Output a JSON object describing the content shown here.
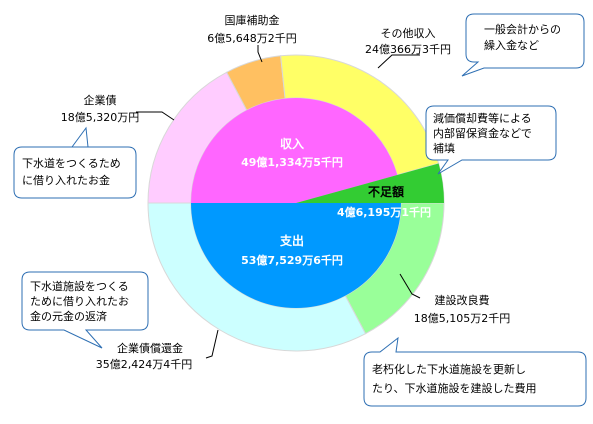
{
  "chart_data": {
    "type": "pie",
    "title": "",
    "rings": [
      {
        "ring": "outer-revenue",
        "slices": [
          {
            "name": "国庫補助金",
            "value_label": "6億5,648万2千円",
            "value": 656482,
            "color": "#ffc061"
          },
          {
            "name": "その他収入",
            "value_label": "24億366万3千円",
            "value": 2403663,
            "color": "#ffff66"
          },
          {
            "name": "不足額",
            "value_label": "4億6,195万1千円",
            "value": 461951,
            "color": "#33cc33"
          },
          {
            "name": "企業債",
            "value_label": "18億5,320万円",
            "value": 1853200,
            "color": "#ffccff"
          }
        ]
      },
      {
        "ring": "outer-expenditure",
        "slices": [
          {
            "name": "建設改良費",
            "value_label": "18億5,105万2千円",
            "value": 1851052,
            "color": "#99ff99"
          },
          {
            "name": "企業債償還金",
            "value_label": "35億2,424万4千円",
            "value": 3524244,
            "color": "#ccffff"
          }
        ]
      },
      {
        "ring": "inner",
        "halves": [
          {
            "name": "収入",
            "value_label": "49億1,334万5千円",
            "value": 4913345,
            "color": "#ff66ff"
          },
          {
            "name": "支出",
            "value_label": "53億7,529万6千円",
            "value": 5375296,
            "color": "#0099ff"
          }
        ]
      }
    ]
  },
  "callouts": {
    "other_income_note": [
      "一般会計からの",
      "繰入金など"
    ],
    "depreciation_note": [
      "減価償却費等による",
      "内部留保資金などで",
      "補填"
    ],
    "bond_note": [
      "下水道をつくるため",
      "に借り入れたお金"
    ],
    "repayment_note": [
      "下水道施設をつくる",
      "ために借り入れたお",
      "金の元金の返済"
    ],
    "construction_note": [
      "老朽化した下水道施設を更新し",
      "たり、下水道施設を建設した費用"
    ]
  }
}
